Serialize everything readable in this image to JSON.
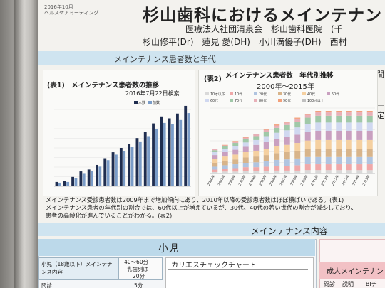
{
  "poster": {
    "meta_line1": "2016年10月",
    "meta_line2": "ヘルスケアミーティング",
    "title": "杉山歯科におけるメインテナン",
    "org": "医療法人社団清泉会　杉山歯科医院　(千",
    "authors": "杉山修平(Dr)　蓮見 愛(DH)　小川満優子(DH)　西村",
    "section1_band": "メインテナンス患者数と年代",
    "right_edge_1": "間",
    "right_edge_2": "一",
    "right_edge_3": "定"
  },
  "table1": {
    "tag": "(表1)",
    "title": "メインテナンス患者数の推移",
    "date": "2016年7月22日検索",
    "legend": [
      "人数",
      "前数"
    ]
  },
  "table2": {
    "tag": "(表2)",
    "title": "メインテナンス患者数　年代別推移",
    "subtitle": "2000年～2015年"
  },
  "text": {
    "line1": "メインテナンス受診患者数は2009年まで増加傾向にあり、2010年以降の受診患者数はほぼ横ばいである。(表1)",
    "line2": "メインテナンス患者の年代別の割合では、60代以上が増えているが、30代、40代の若い世代の割合が減少しており、",
    "line3": "患者の高齢化が進んでいることがわかる。(表2)"
  },
  "section2": {
    "band": "メインテナンス内容",
    "child_title": "小児",
    "child_col1": "小児（18歳以下）メインテナンス内容",
    "child_col2a": "40～60分",
    "child_col2b": "乳歯列は",
    "child_col2c": "20分",
    "child_row_label": "問診",
    "child_row_val": "5分",
    "caries_title": "カリエスチェックチャート",
    "adult_title": "成人メインテナン",
    "adult_row1": "問診",
    "adult_row2": "説明",
    "adult_row3": "TBIチ"
  },
  "chart_data": [
    {
      "type": "bar",
      "title": "メインテナンス患者数の推移",
      "subtitle": "2016年7月22日検索",
      "series": [
        {
          "name": "人数",
          "values": [
            18,
            21,
            39,
            62,
            70,
            89,
            117,
            142,
            160,
            176,
            201,
            226,
            262,
            291,
            283,
            303,
            335
          ]
        },
        {
          "name": "前数",
          "values": [
            15,
            18,
            35,
            55,
            64,
            82,
            109,
            132,
            148,
            163,
            187,
            209,
            237,
            264,
            258,
            276,
            305
          ]
        }
      ],
      "ylim": [
        0,
        3200
      ],
      "grid": true,
      "legend_placement": "top-right"
    },
    {
      "type": "bar",
      "stacked": true,
      "title": "メインテナンス患者数　年代別推移",
      "subtitle": "2000年～2015年",
      "categories": [
        "2000年",
        "2001年",
        "2002年",
        "2003年",
        "2004年",
        "2005年",
        "2006年",
        "2007年",
        "2008年",
        "2009年",
        "2010年",
        "2011年",
        "2012年",
        "2013年",
        "2014年",
        "2015年"
      ],
      "series": [
        {
          "name": "10才以下",
          "color": "#d9d9d9",
          "values": [
            3,
            4,
            4,
            5,
            5,
            5,
            6,
            6,
            6,
            7,
            7,
            7,
            7,
            7,
            7,
            7
          ]
        },
        {
          "name": "10代",
          "color": "#f0a8a8",
          "values": [
            5,
            6,
            7,
            8,
            8,
            9,
            10,
            10,
            11,
            12,
            12,
            12,
            12,
            12,
            12,
            12
          ]
        },
        {
          "name": "20代",
          "color": "#b0c4e0",
          "values": [
            6,
            7,
            8,
            9,
            10,
            11,
            12,
            13,
            14,
            15,
            15,
            15,
            15,
            15,
            15,
            15
          ]
        },
        {
          "name": "30代",
          "color": "#d8b48a",
          "values": [
            8,
            9,
            10,
            11,
            12,
            13,
            14,
            15,
            16,
            17,
            17,
            17,
            17,
            17,
            17,
            17
          ]
        },
        {
          "name": "40代",
          "color": "#f5d0a0",
          "values": [
            8,
            9,
            10,
            11,
            12,
            13,
            14,
            15,
            16,
            17,
            18,
            18,
            18,
            18,
            18,
            18
          ]
        },
        {
          "name": "50代",
          "color": "#c9a0c0",
          "values": [
            8,
            9,
            10,
            11,
            12,
            14,
            15,
            16,
            17,
            18,
            19,
            19,
            19,
            19,
            19,
            19
          ]
        },
        {
          "name": "60代",
          "color": "#d0d8f0",
          "values": [
            6,
            7,
            8,
            9,
            10,
            12,
            13,
            14,
            15,
            16,
            17,
            17,
            17,
            17,
            17,
            17
          ]
        },
        {
          "name": "70代",
          "color": "#a0c8a8",
          "values": [
            4,
            5,
            6,
            7,
            8,
            9,
            10,
            11,
            12,
            13,
            14,
            14,
            14,
            14,
            14,
            14
          ]
        },
        {
          "name": "80代",
          "color": "#e8b0b8",
          "values": [
            2,
            2,
            3,
            3,
            4,
            4,
            5,
            5,
            6,
            6,
            7,
            7,
            7,
            7,
            7,
            7
          ]
        },
        {
          "name": "90代",
          "color": "#f3a07a",
          "values": [
            1,
            1,
            1,
            1,
            1,
            2,
            2,
            2,
            2,
            2,
            3,
            3,
            3,
            3,
            3,
            3
          ]
        },
        {
          "name": "100才以上",
          "color": "#c0c0c0",
          "values": [
            0,
            0,
            0,
            0,
            0,
            0,
            0,
            0,
            0,
            0,
            0,
            0,
            0,
            0,
            0,
            0
          ]
        }
      ],
      "grid": true,
      "legend_placement": "top"
    }
  ]
}
